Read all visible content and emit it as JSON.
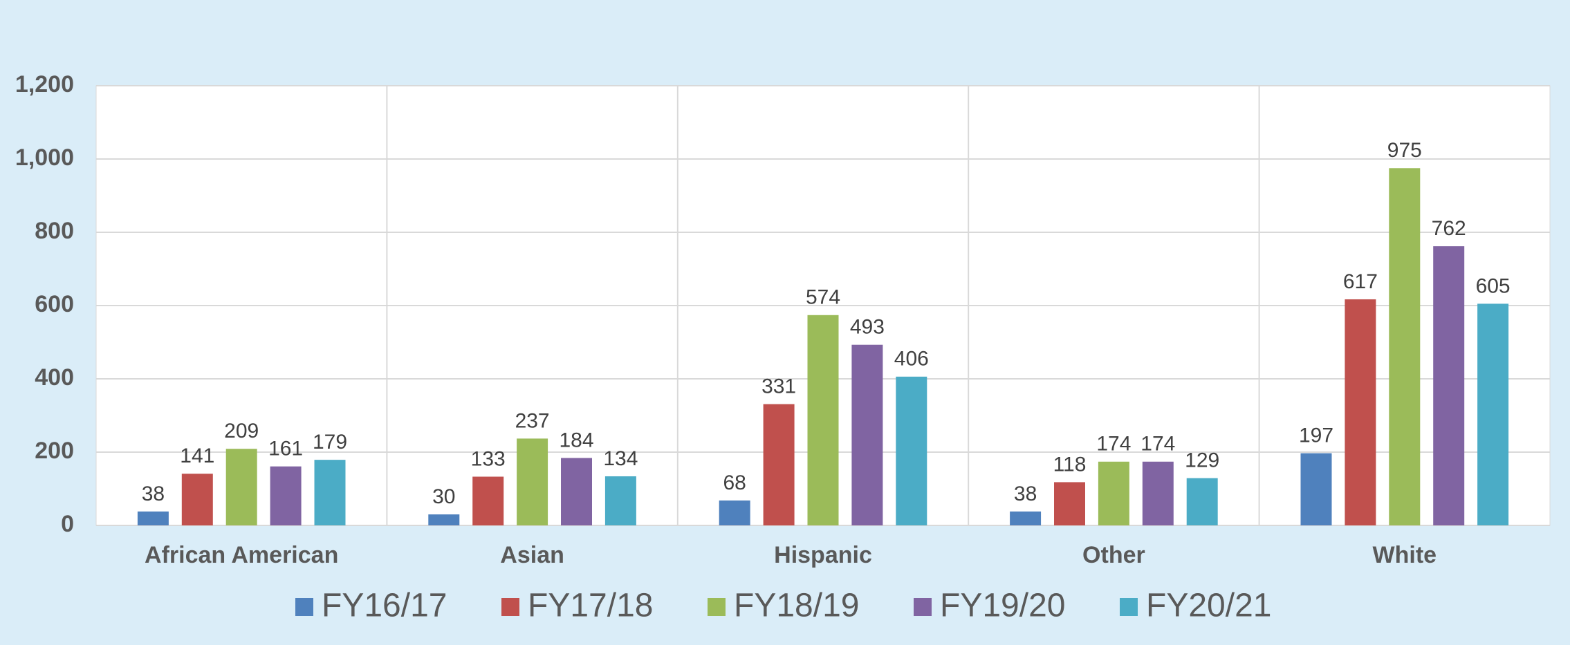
{
  "chart_data": {
    "type": "bar",
    "categories": [
      "African American",
      "Asian",
      "Hispanic",
      "Other",
      "White"
    ],
    "series": [
      {
        "name": "FY16/17",
        "color": "#4f81bd",
        "values": [
          38,
          30,
          68,
          38,
          197
        ]
      },
      {
        "name": "FY17/18",
        "color": "#c0504d",
        "values": [
          141,
          133,
          331,
          118,
          617
        ]
      },
      {
        "name": "FY18/19",
        "color": "#9bbb59",
        "values": [
          209,
          237,
          574,
          174,
          975
        ]
      },
      {
        "name": "FY19/20",
        "color": "#8064a2",
        "values": [
          161,
          184,
          493,
          174,
          762
        ]
      },
      {
        "name": "FY20/21",
        "color": "#4bacc6",
        "values": [
          179,
          134,
          406,
          129,
          605
        ]
      }
    ],
    "ylim": [
      0,
      1200
    ],
    "yticks": [
      0,
      200,
      400,
      600,
      800,
      {
        "value": 1000,
        "label": "1,000"
      },
      {
        "value": 1200,
        "label": "1,200"
      }
    ],
    "grid": true,
    "legend": "bottom"
  }
}
